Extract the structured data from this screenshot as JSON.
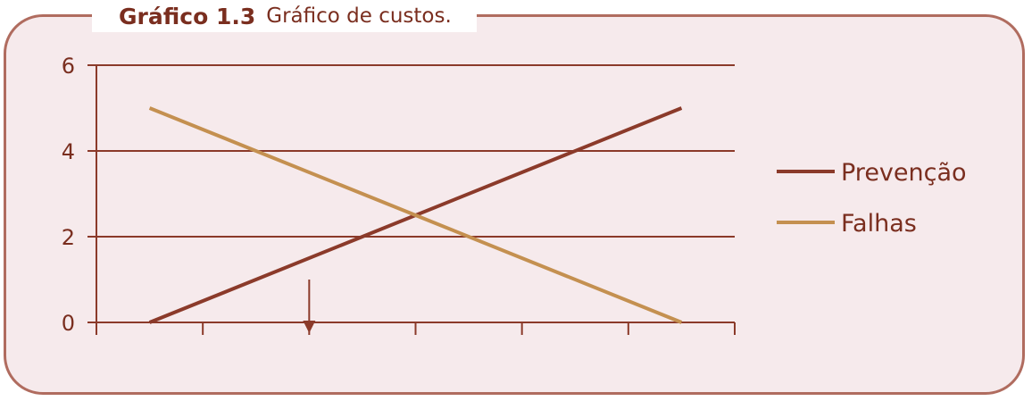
{
  "header": {
    "label": "Gráfico 1.3",
    "title": "Gráfico de custos."
  },
  "colors": {
    "frame": "#b06c5f",
    "background": "#f6eaec",
    "grid": "#8b3a2a",
    "text": "#7a2e1f",
    "prevencao": "#8b3a2a",
    "falhas": "#c49050"
  },
  "chart_data": {
    "type": "line",
    "title": "Gráfico de custos.",
    "xlabel": "",
    "ylabel": "",
    "ylim": [
      0,
      6
    ],
    "xlim": [
      0,
      6
    ],
    "yticks": [
      "0",
      "2",
      "4",
      "6"
    ],
    "x_tick_count": 7,
    "grid": "horizontal",
    "legend_position": "right",
    "series": [
      {
        "name": "Prevenção",
        "color": "#8b3a2a",
        "x": [
          0.5,
          5.5
        ],
        "y": [
          0,
          5
        ]
      },
      {
        "name": "Falhas",
        "color": "#c49050",
        "x": [
          0.5,
          5.5
        ],
        "y": [
          5,
          0
        ]
      }
    ],
    "annotations": [
      {
        "type": "arrow-down",
        "x": 2.0,
        "y_from": 1.0,
        "y_to": 0
      }
    ]
  }
}
